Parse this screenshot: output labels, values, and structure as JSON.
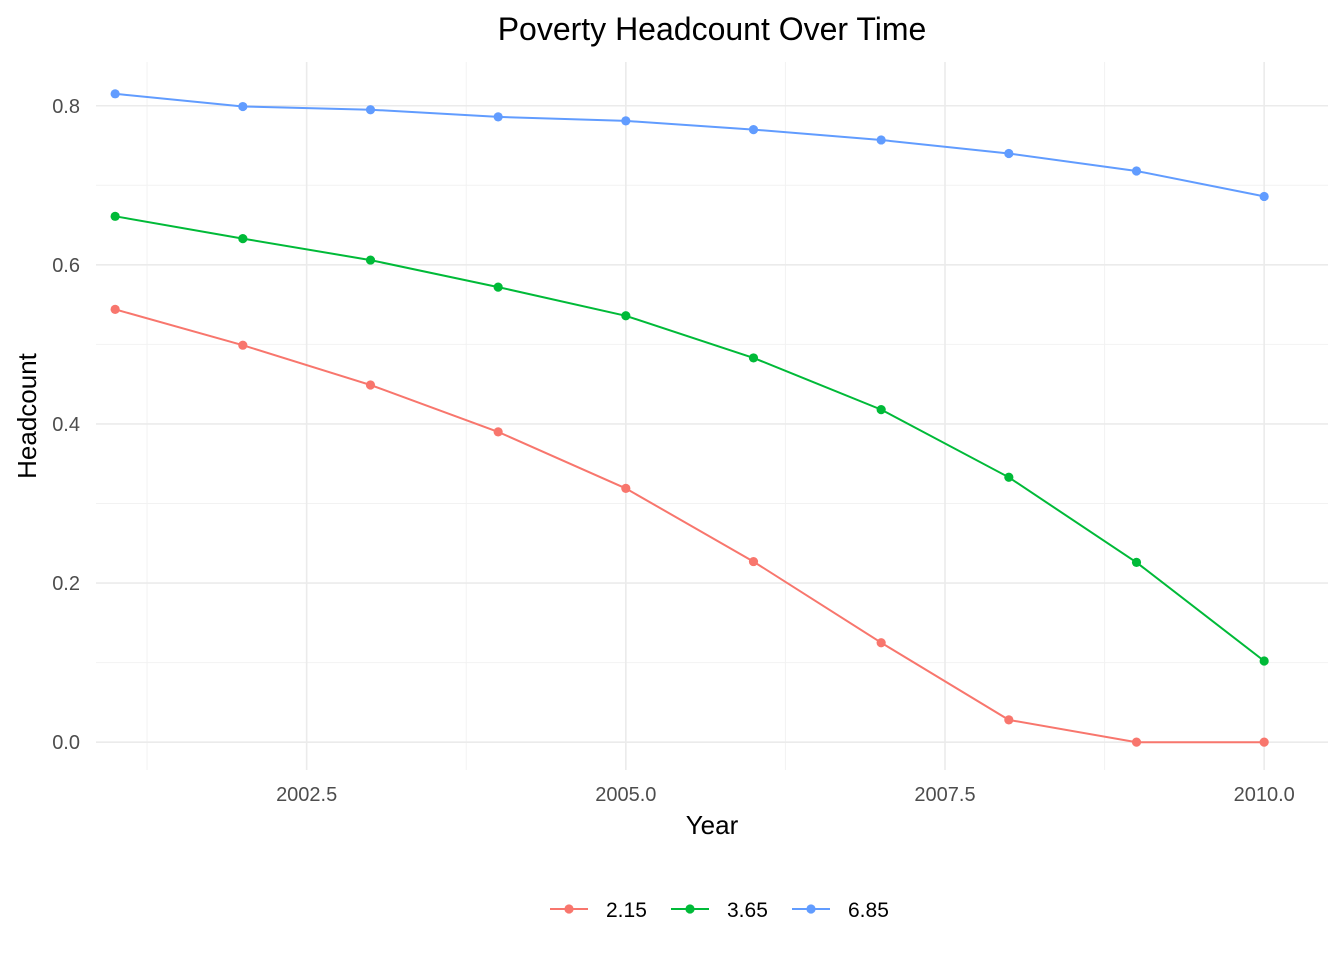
{
  "chart_data": {
    "type": "line",
    "title": "Poverty Headcount Over Time",
    "xlabel": "Year",
    "ylabel": "Headcount",
    "xlim": [
      2000.85,
      2010.5
    ],
    "ylim": [
      -0.035,
      0.855
    ],
    "x_ticks": [
      2002.5,
      2005.0,
      2007.5,
      2010.0
    ],
    "x_tick_labels": [
      "2002.5",
      "2005.0",
      "2007.5",
      "2010.0"
    ],
    "y_ticks": [
      0.0,
      0.2,
      0.4,
      0.6,
      0.8
    ],
    "y_tick_labels": [
      "0.0",
      "0.2",
      "0.4",
      "0.6",
      "0.8"
    ],
    "grid": true,
    "legend_position": "bottom",
    "x": [
      2001,
      2002,
      2003,
      2004,
      2005,
      2006,
      2007,
      2008,
      2009,
      2010
    ],
    "series": [
      {
        "name": "2.15",
        "color": "#F8766D",
        "values": [
          0.544,
          0.499,
          0.449,
          0.39,
          0.319,
          0.227,
          0.125,
          0.028,
          0.0,
          0.0
        ]
      },
      {
        "name": "3.65",
        "color": "#00BA38",
        "values": [
          0.661,
          0.633,
          0.606,
          0.572,
          0.536,
          0.483,
          0.418,
          0.333,
          0.226,
          0.102
        ]
      },
      {
        "name": "6.85",
        "color": "#619CFF",
        "values": [
          0.815,
          0.799,
          0.795,
          0.786,
          0.781,
          0.77,
          0.757,
          0.74,
          0.718,
          0.686
        ]
      }
    ]
  }
}
